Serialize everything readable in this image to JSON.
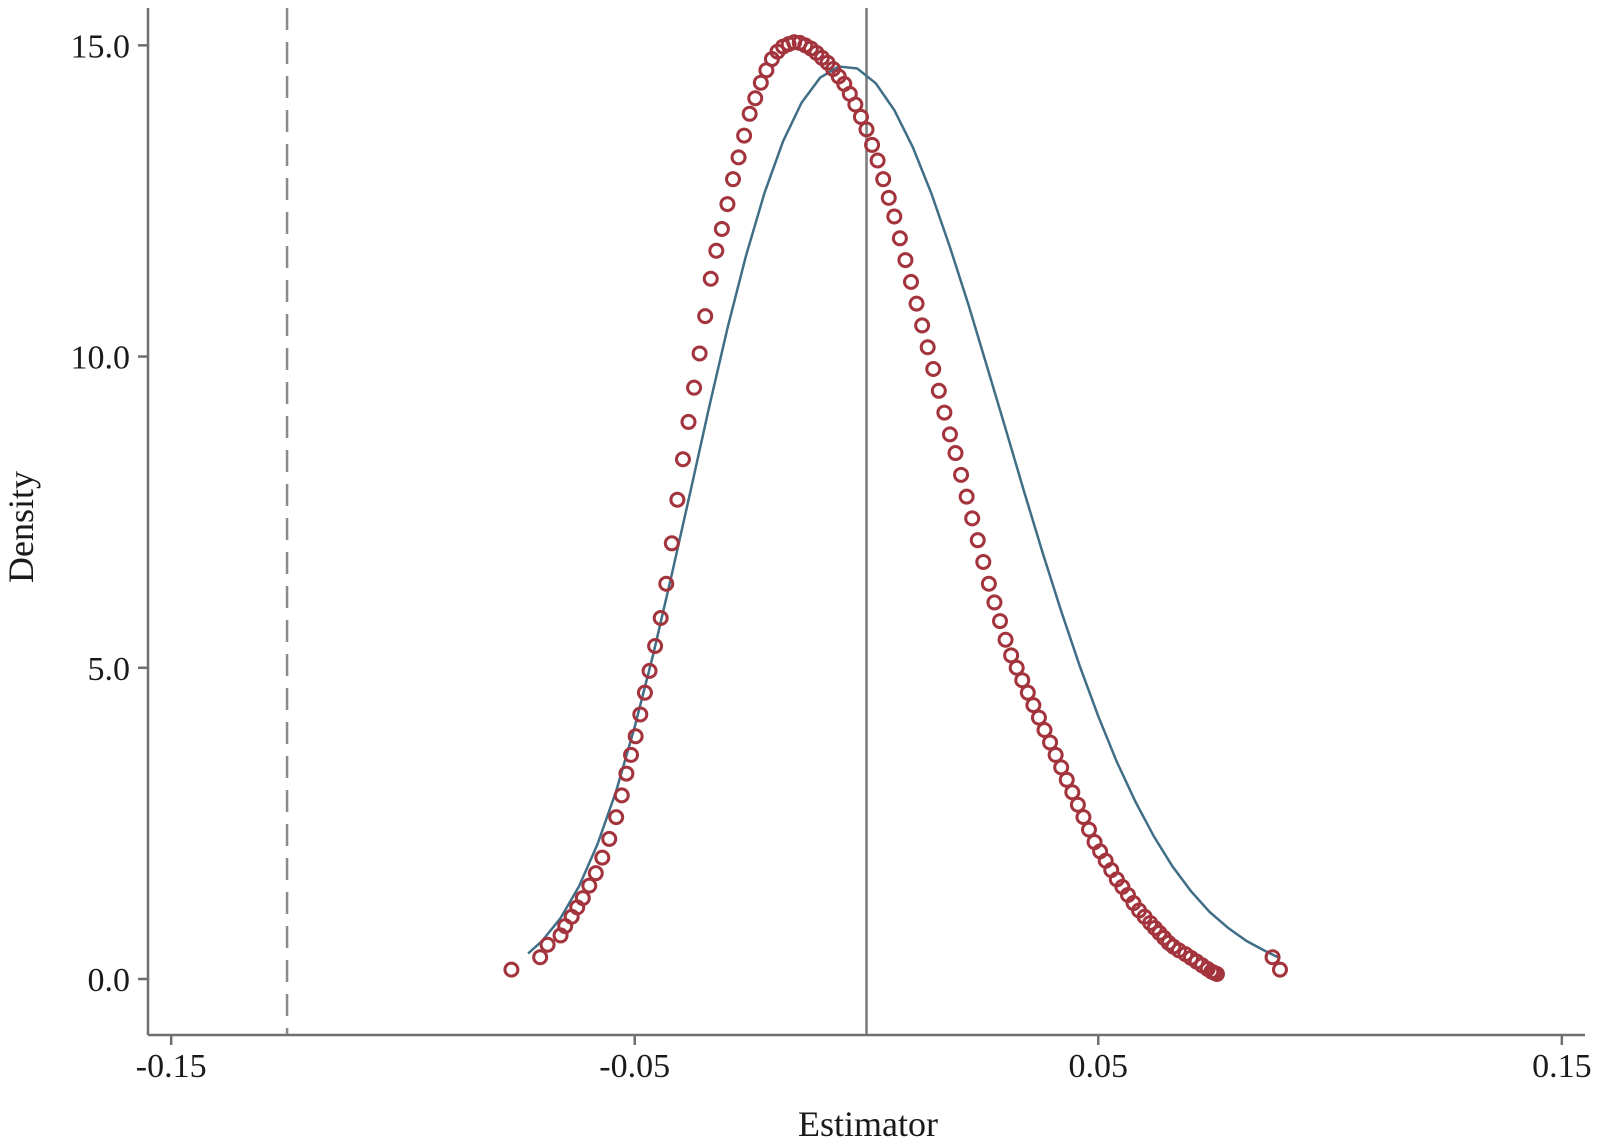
{
  "colors": {
    "axis": "#6f6f6f",
    "points": "#a3343d",
    "normal_curve": "#3f6e86",
    "reference_line": "#7a7a7a",
    "dashed_line": "#8a8a8a"
  },
  "chart_data": {
    "type": "scatter",
    "xlabel": "Estimator",
    "ylabel": "Density",
    "xlim": [
      -0.155,
      0.155
    ],
    "ylim": [
      -0.9,
      15.6
    ],
    "x_ticks": [
      -0.15,
      -0.05,
      0.05,
      0.15
    ],
    "x_tick_labels": [
      "-0.15",
      "-0.05",
      "0.05",
      "0.15"
    ],
    "y_ticks": [
      0,
      5,
      10,
      15
    ],
    "y_tick_labels": [
      "0.0",
      "5.0",
      "10.0",
      "15.0"
    ],
    "grid": false,
    "legend": "none",
    "vertical_lines": [
      {
        "x": -0.125,
        "style": "dashed"
      },
      {
        "x": 0.0,
        "style": "solid"
      }
    ],
    "series": [
      {
        "kind": "points",
        "marker": "open-circle",
        "x": [
          -0.0766,
          -0.0704,
          -0.0688,
          -0.066,
          -0.065,
          -0.0636,
          -0.0624,
          -0.0612,
          -0.0598,
          -0.0584,
          -0.057,
          -0.0555,
          -0.054,
          -0.0528,
          -0.0518,
          -0.0508,
          -0.0498,
          -0.0488,
          -0.0478,
          -0.0468,
          -0.0456,
          -0.0444,
          -0.0432,
          -0.042,
          -0.0408,
          -0.0396,
          -0.0384,
          -0.0372,
          -0.036,
          -0.0348,
          -0.0336,
          -0.0324,
          -0.0312,
          -0.03,
          -0.0288,
          -0.0276,
          -0.0264,
          -0.0252,
          -0.024,
          -0.0228,
          -0.0216,
          -0.0204,
          -0.0192,
          -0.018,
          -0.0168,
          -0.0156,
          -0.0144,
          -0.0132,
          -0.012,
          -0.0108,
          -0.0096,
          -0.0084,
          -0.0072,
          -0.006,
          -0.0048,
          -0.0036,
          -0.0024,
          -0.0012,
          0.0,
          0.0012,
          0.0024,
          0.0036,
          0.0048,
          0.006,
          0.0072,
          0.0084,
          0.0096,
          0.0108,
          0.012,
          0.0132,
          0.0144,
          0.0156,
          0.0168,
          0.018,
          0.0192,
          0.0204,
          0.0216,
          0.0228,
          0.024,
          0.0252,
          0.0264,
          0.0276,
          0.0288,
          0.03,
          0.0312,
          0.0324,
          0.0336,
          0.0348,
          0.036,
          0.0372,
          0.0384,
          0.0396,
          0.0408,
          0.042,
          0.0432,
          0.0444,
          0.0456,
          0.0468,
          0.048,
          0.0492,
          0.0504,
          0.0516,
          0.0528,
          0.054,
          0.0552,
          0.0564,
          0.0576,
          0.0588,
          0.06,
          0.0612,
          0.0622,
          0.0632,
          0.0642,
          0.0652,
          0.0662,
          0.0674,
          0.0688,
          0.07,
          0.0712,
          0.0724,
          0.0736,
          0.0744,
          0.075,
          0.0756,
          0.0876,
          0.0892
        ],
        "y": [
          0.15,
          0.35,
          0.55,
          0.7,
          0.85,
          1.0,
          1.15,
          1.3,
          1.5,
          1.7,
          1.95,
          2.25,
          2.6,
          2.95,
          3.3,
          3.6,
          3.9,
          4.25,
          4.6,
          4.95,
          5.35,
          5.8,
          6.35,
          7.0,
          7.7,
          8.35,
          8.95,
          9.5,
          10.05,
          10.65,
          11.25,
          11.7,
          12.05,
          12.45,
          12.85,
          13.2,
          13.55,
          13.9,
          14.15,
          14.4,
          14.6,
          14.78,
          14.9,
          14.98,
          15.02,
          15.05,
          15.04,
          15.0,
          14.95,
          14.88,
          14.8,
          14.72,
          14.62,
          14.5,
          14.38,
          14.22,
          14.05,
          13.85,
          13.65,
          13.4,
          13.15,
          12.85,
          12.55,
          12.25,
          11.9,
          11.55,
          11.2,
          10.85,
          10.5,
          10.15,
          9.8,
          9.45,
          9.1,
          8.75,
          8.45,
          8.1,
          7.75,
          7.4,
          7.05,
          6.7,
          6.35,
          6.05,
          5.75,
          5.45,
          5.2,
          5.0,
          4.8,
          4.6,
          4.4,
          4.2,
          4.0,
          3.8,
          3.6,
          3.4,
          3.2,
          3.0,
          2.8,
          2.6,
          2.4,
          2.2,
          2.05,
          1.9,
          1.75,
          1.6,
          1.48,
          1.35,
          1.22,
          1.1,
          1.0,
          0.9,
          0.82,
          0.74,
          0.66,
          0.58,
          0.52,
          0.46,
          0.4,
          0.34,
          0.28,
          0.22,
          0.16,
          0.12,
          0.1,
          0.08,
          0.35,
          0.15
        ]
      },
      {
        "kind": "line",
        "x": [
          -0.073,
          -0.07,
          -0.066,
          -0.062,
          -0.058,
          -0.054,
          -0.05,
          -0.046,
          -0.042,
          -0.038,
          -0.034,
          -0.03,
          -0.026,
          -0.022,
          -0.018,
          -0.014,
          -0.01,
          -0.006,
          -0.002,
          0.002,
          0.006,
          0.01,
          0.014,
          0.018,
          0.022,
          0.026,
          0.03,
          0.034,
          0.038,
          0.042,
          0.046,
          0.05,
          0.054,
          0.058,
          0.062,
          0.066,
          0.07,
          0.074,
          0.078,
          0.082,
          0.086,
          0.089
        ],
        "y": [
          0.41,
          0.61,
          0.98,
          1.49,
          2.17,
          3.02,
          4.05,
          5.22,
          6.5,
          7.83,
          9.17,
          10.45,
          11.62,
          12.63,
          13.46,
          14.08,
          14.48,
          14.66,
          14.63,
          14.39,
          13.96,
          13.36,
          12.62,
          11.76,
          10.83,
          9.84,
          8.84,
          7.83,
          6.85,
          5.91,
          5.03,
          4.22,
          3.49,
          2.85,
          2.29,
          1.81,
          1.41,
          1.08,
          0.82,
          0.61,
          0.45,
          0.34
        ]
      }
    ]
  }
}
